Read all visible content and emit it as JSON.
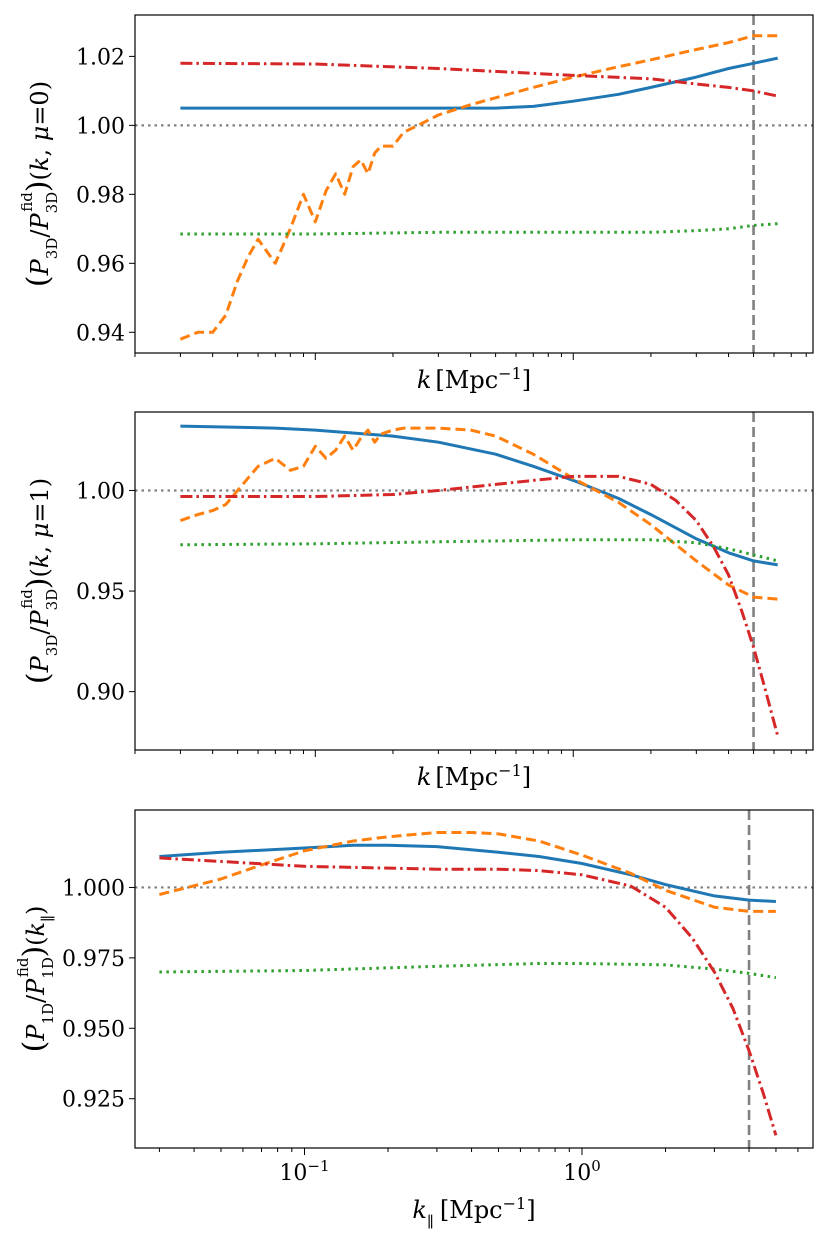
{
  "colors": {
    "blue": "#1f77b4",
    "orange": "#ff7f0e",
    "green": "#2ca02c",
    "red": "#d62728",
    "reference_gray": "#808080"
  },
  "chart_data": [
    {
      "type": "line",
      "panel": "top",
      "xlabel": "k [Mpc⁻¹]",
      "ylabel": "(P3D/P3D^fid)(k, μ=0)",
      "xscale": "log",
      "xlim": [
        0.02,
        8.5
      ],
      "ylim": [
        0.934,
        1.032
      ],
      "show_x_tick_labels": false,
      "yticks": [
        0.94,
        0.96,
        0.98,
        1.0,
        1.02
      ],
      "ytick_labels": [
        "0.94",
        "0.96",
        "0.98",
        "1.00",
        "1.02"
      ],
      "hline": 1.0,
      "vline": 5.0,
      "series": [
        {
          "color": "blue",
          "dash": "solid",
          "x": [
            0.03,
            0.06,
            0.1,
            0.2,
            0.3,
            0.5,
            0.7,
            1.0,
            1.5,
            2.0,
            3.0,
            4.0,
            5.0,
            6.2
          ],
          "y": [
            1.005,
            1.005,
            1.005,
            1.005,
            1.005,
            1.005,
            1.0055,
            1.007,
            1.009,
            1.011,
            1.014,
            1.0165,
            1.018,
            1.0195
          ]
        },
        {
          "color": "orange",
          "dash": "dashed",
          "x": [
            0.03,
            0.035,
            0.04,
            0.045,
            0.05,
            0.055,
            0.06,
            0.07,
            0.08,
            0.09,
            0.1,
            0.11,
            0.12,
            0.13,
            0.14,
            0.15,
            0.16,
            0.17,
            0.18,
            0.2,
            0.22,
            0.25,
            0.3,
            0.4,
            0.5,
            0.7,
            1.0,
            1.5,
            2.0,
            3.0,
            4.0,
            5.0,
            6.2
          ],
          "y": [
            0.938,
            0.94,
            0.94,
            0.945,
            0.955,
            0.962,
            0.967,
            0.96,
            0.97,
            0.98,
            0.972,
            0.981,
            0.986,
            0.98,
            0.988,
            0.99,
            0.986,
            0.992,
            0.994,
            0.994,
            0.998,
            1.0,
            1.003,
            1.006,
            1.008,
            1.011,
            1.014,
            1.017,
            1.019,
            1.022,
            1.024,
            1.026,
            1.026
          ]
        },
        {
          "color": "green",
          "dash": "dotted",
          "x": [
            0.03,
            0.1,
            0.3,
            1.0,
            2.0,
            3.0,
            4.0,
            5.0,
            6.2
          ],
          "y": [
            0.9685,
            0.9685,
            0.969,
            0.969,
            0.969,
            0.9695,
            0.97,
            0.971,
            0.9715
          ]
        },
        {
          "color": "red",
          "dash": "dashdot",
          "x": [
            0.03,
            0.1,
            0.3,
            1.0,
            2.0,
            3.0,
            4.0,
            5.0,
            6.2
          ],
          "y": [
            1.018,
            1.0178,
            1.0165,
            1.0145,
            1.0135,
            1.012,
            1.011,
            1.01,
            1.0085
          ]
        }
      ]
    },
    {
      "type": "line",
      "panel": "middle",
      "xlabel": "k [Mpc⁻¹]",
      "ylabel": "(P3D/P3D^fid)(k, μ=1)",
      "xscale": "log",
      "xlim": [
        0.02,
        8.5
      ],
      "ylim": [
        0.871,
        1.039
      ],
      "show_x_tick_labels": false,
      "yticks": [
        0.9,
        0.95,
        1.0
      ],
      "ytick_labels": [
        "0.90",
        "0.95",
        "1.00"
      ],
      "hline": 1.0,
      "vline": 5.0,
      "series": [
        {
          "color": "blue",
          "dash": "solid",
          "x": [
            0.03,
            0.07,
            0.1,
            0.2,
            0.3,
            0.5,
            0.7,
            1.0,
            1.5,
            2.0,
            3.0,
            4.0,
            5.0,
            6.2
          ],
          "y": [
            1.032,
            1.031,
            1.03,
            1.027,
            1.024,
            1.018,
            1.012,
            1.005,
            0.996,
            0.988,
            0.976,
            0.969,
            0.965,
            0.963
          ]
        },
        {
          "color": "orange",
          "dash": "dashed",
          "x": [
            0.03,
            0.035,
            0.04,
            0.045,
            0.05,
            0.06,
            0.07,
            0.08,
            0.09,
            0.1,
            0.11,
            0.12,
            0.13,
            0.14,
            0.15,
            0.16,
            0.17,
            0.18,
            0.2,
            0.22,
            0.25,
            0.3,
            0.4,
            0.5,
            0.7,
            1.0,
            1.5,
            2.0,
            3.0,
            4.0,
            5.0,
            6.2
          ],
          "y": [
            0.985,
            0.988,
            0.99,
            0.993,
            1.0,
            1.012,
            1.016,
            1.01,
            1.012,
            1.022,
            1.016,
            1.02,
            1.027,
            1.02,
            1.026,
            1.03,
            1.024,
            1.028,
            1.03,
            1.031,
            1.031,
            1.031,
            1.03,
            1.027,
            1.018,
            1.006,
            0.994,
            0.983,
            0.965,
            0.953,
            0.947,
            0.946
          ]
        },
        {
          "color": "green",
          "dash": "dotted",
          "x": [
            0.03,
            0.1,
            0.3,
            1.0,
            2.0,
            3.0,
            4.0,
            5.0,
            6.2
          ],
          "y": [
            0.973,
            0.9735,
            0.9745,
            0.9755,
            0.9755,
            0.974,
            0.971,
            0.968,
            0.965
          ]
        },
        {
          "color": "red",
          "dash": "dashdot",
          "x": [
            0.03,
            0.1,
            0.2,
            0.3,
            0.5,
            0.7,
            1.0,
            1.5,
            2.0,
            2.5,
            3.0,
            3.5,
            4.0,
            4.5,
            5.0,
            5.5,
            6.2
          ],
          "y": [
            0.997,
            0.997,
            0.998,
            1.0,
            1.003,
            1.005,
            1.007,
            1.007,
            1.003,
            0.995,
            0.985,
            0.972,
            0.958,
            0.94,
            0.922,
            0.903,
            0.878
          ]
        }
      ]
    },
    {
      "type": "line",
      "panel": "bottom",
      "xlabel": "k∥ [Mpc⁻¹]",
      "ylabel": "(P1D/P1D^fid)(k∥)",
      "xscale": "log",
      "xlim": [
        0.0245,
        6.8
      ],
      "ylim": [
        0.9075,
        1.0275
      ],
      "show_x_tick_labels": true,
      "xticks": [
        0.1,
        1.0
      ],
      "xtick_labels": [
        {
          "base": "10",
          "exp": "−1"
        },
        {
          "base": "10",
          "exp": "0"
        }
      ],
      "yticks": [
        0.925,
        0.95,
        0.975,
        1.0
      ],
      "ytick_labels": [
        "0.925",
        "0.950",
        "0.975",
        "1.000"
      ],
      "hline": 1.0,
      "vline": 4.0,
      "series": [
        {
          "color": "blue",
          "dash": "solid",
          "x": [
            0.03,
            0.05,
            0.1,
            0.15,
            0.2,
            0.3,
            0.5,
            0.7,
            1.0,
            1.5,
            2.0,
            3.0,
            4.0,
            5.0
          ],
          "y": [
            1.011,
            1.0125,
            1.014,
            1.015,
            1.015,
            1.0145,
            1.0125,
            1.011,
            1.0085,
            1.0045,
            1.001,
            0.997,
            0.9955,
            0.995
          ]
        },
        {
          "color": "orange",
          "dash": "dashed",
          "x": [
            0.03,
            0.05,
            0.07,
            0.1,
            0.15,
            0.2,
            0.3,
            0.4,
            0.5,
            0.7,
            1.0,
            1.5,
            2.0,
            3.0,
            4.0,
            5.0
          ],
          "y": [
            0.9975,
            1.003,
            1.008,
            1.013,
            1.0165,
            1.018,
            1.0195,
            1.0195,
            1.019,
            1.0165,
            1.0115,
            1.005,
            0.999,
            0.993,
            0.9915,
            0.9915
          ]
        },
        {
          "color": "green",
          "dash": "dotted",
          "x": [
            0.03,
            0.1,
            0.3,
            0.7,
            1.0,
            2.0,
            3.0,
            4.0,
            5.0
          ],
          "y": [
            0.97,
            0.9705,
            0.972,
            0.973,
            0.973,
            0.9725,
            0.971,
            0.9695,
            0.968
          ]
        },
        {
          "color": "red",
          "dash": "dashdot",
          "x": [
            0.03,
            0.1,
            0.3,
            0.5,
            0.7,
            1.0,
            1.5,
            2.0,
            2.5,
            3.0,
            3.5,
            4.0,
            4.5,
            5.0
          ],
          "y": [
            1.0105,
            1.0075,
            1.0065,
            1.0065,
            1.006,
            1.0045,
            1.0005,
            0.993,
            0.982,
            0.97,
            0.957,
            0.942,
            0.927,
            0.912
          ]
        }
      ]
    }
  ]
}
